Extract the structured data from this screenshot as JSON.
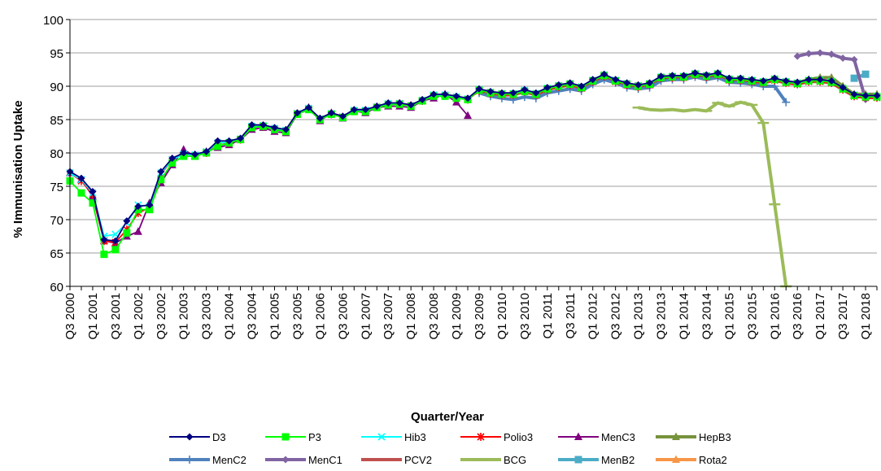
{
  "chart_data": {
    "type": "line",
    "xlabel": "Quarter/Year",
    "ylabel": "% Immunisation Uptake",
    "ylim": [
      60,
      100
    ],
    "yticks": [
      60,
      65,
      70,
      75,
      80,
      85,
      90,
      95,
      100
    ],
    "grid": "horizontal",
    "legend_position": "bottom",
    "x_categories": [
      "Q3 2000",
      "Q4 2000",
      "Q1 2001",
      "Q2 2001",
      "Q3 2001",
      "Q4 2001",
      "Q1 2002",
      "Q2 2002",
      "Q3 2002",
      "Q4 2002",
      "Q1 2003",
      "Q2 2003",
      "Q3 2003",
      "Q4 2003",
      "Q1 2004",
      "Q2 2004",
      "Q3 2004",
      "Q4 2004",
      "Q1 2005",
      "Q2 2005",
      "Q3 2005",
      "Q4 2005",
      "Q1 2006",
      "Q2 2006",
      "Q3 2006",
      "Q4 2006",
      "Q1 2007",
      "Q2 2007",
      "Q3 2007",
      "Q4 2007",
      "Q1 2008",
      "Q2 2008",
      "Q3 2008",
      "Q4 2008",
      "Q1 2009",
      "Q2 2009",
      "Q3 2009",
      "Q4 2009",
      "Q1 2010",
      "Q2 2010",
      "Q3 2010",
      "Q4 2010",
      "Q1 2011",
      "Q2 2011",
      "Q3 2011",
      "Q4 2011",
      "Q1 2012",
      "Q2 2012",
      "Q3 2012",
      "Q4 2012",
      "Q1 2013",
      "Q2 2013",
      "Q3 2013",
      "Q4 2013",
      "Q1 2014",
      "Q2 2014",
      "Q3 2014",
      "Q4 2014",
      "Q1 2015",
      "Q2 2015",
      "Q3 2015",
      "Q4 2015",
      "Q1 2016",
      "Q2 2016",
      "Q3 2016",
      "Q4 2016",
      "Q1 2017",
      "Q2 2017",
      "Q3 2017",
      "Q4 2017",
      "Q1 2018",
      "Q2 2018"
    ],
    "tick_labels": [
      "Q3 2000",
      "Q1 2001",
      "Q3 2001",
      "Q1 2002",
      "Q3 2002",
      "Q1 2003",
      "Q3 2003",
      "Q1 2004",
      "Q3 2004",
      "Q1 2005",
      "Q3 2005",
      "Q1 2006",
      "Q3 2006",
      "Q1 2007",
      "Q3 2007",
      "Q1 2008",
      "Q3 2008",
      "Q1 2009",
      "Q3 2009",
      "Q1 2010",
      "Q3 2010",
      "Q1 2011",
      "Q3 2011",
      "Q1 2012",
      "Q3 2012",
      "Q1 2013",
      "Q3 2013",
      "Q1 2014",
      "Q3 2014",
      "Q1 2015",
      "Q3 2015",
      "Q1 2016",
      "Q3 2016",
      "Q1 2017",
      "Q3 2017",
      "Q1 2018"
    ],
    "series": [
      {
        "name": "D3",
        "color": "#000080",
        "marker": "diamond",
        "start": 0,
        "values": [
          77.2,
          76.2,
          74.2,
          67.0,
          66.8,
          69.8,
          72.0,
          72.2,
          77.2,
          79.2,
          80.0,
          79.8,
          80.2,
          81.8,
          81.8,
          82.2,
          84.2,
          84.2,
          83.8,
          83.5,
          86.0,
          86.8,
          85.2,
          86.0,
          85.5,
          86.5,
          86.5,
          87.0,
          87.5,
          87.5,
          87.2,
          88.0,
          88.8,
          88.8,
          88.5,
          88.2,
          89.6,
          89.2,
          89.0,
          89.0,
          89.5,
          89.0,
          89.8,
          90.2,
          90.5,
          90.0,
          91.0,
          91.8,
          91.0,
          90.5,
          90.2,
          90.5,
          91.5,
          91.6,
          91.6,
          92.0,
          91.7,
          92.0,
          91.2,
          91.2,
          91.0,
          90.8,
          91.2,
          90.8,
          90.6,
          91.0,
          91.0,
          90.8,
          89.8,
          88.8,
          88.6,
          88.6
        ]
      },
      {
        "name": "P3",
        "color": "#00ff00",
        "marker": "square",
        "start": 0,
        "values": [
          75.8,
          74.0,
          72.5,
          64.8,
          65.5,
          68.0,
          71.5,
          71.5,
          76.0,
          78.5,
          79.5,
          79.5,
          80.0,
          81.0,
          81.5,
          82.0,
          83.8,
          84.0,
          83.5,
          83.2,
          85.8,
          86.5,
          85.0,
          85.8,
          85.3,
          86.2,
          86.2,
          86.8,
          87.2,
          87.3,
          87.0,
          87.8,
          88.5,
          88.5,
          88.2,
          88.0,
          89.4,
          89.0,
          88.8,
          88.8,
          89.2,
          88.8,
          89.6,
          90.0,
          90.3,
          89.8,
          90.8,
          91.6,
          90.8,
          90.3,
          90.0,
          90.3,
          91.3,
          91.4,
          91.4,
          91.8,
          91.5,
          91.8,
          91.0,
          91.0,
          90.8,
          90.6,
          91.0,
          90.6,
          90.4,
          90.8,
          90.8,
          90.6,
          89.6,
          88.6,
          88.4,
          88.4
        ]
      },
      {
        "name": "Hib3",
        "color": "#00ffff",
        "marker": "x",
        "start": 0,
        "values": [
          77.0,
          76.0,
          74.0,
          67.5,
          67.8,
          69.5,
          72.2,
          72.0,
          77.0,
          79.0,
          79.8,
          79.7,
          80.2,
          81.5,
          81.6,
          82.1,
          84.0,
          84.1,
          83.7,
          83.4,
          85.9,
          86.7,
          85.1,
          85.9,
          85.4,
          86.4,
          86.4,
          86.9,
          87.4,
          87.4,
          87.1,
          87.9,
          88.7,
          88.7,
          88.4,
          88.1,
          89.5,
          89.1,
          88.9,
          88.9,
          89.4,
          88.9,
          89.7,
          90.1,
          90.4,
          89.9,
          90.9,
          91.7,
          90.9,
          90.4,
          90.1,
          90.4,
          91.4,
          91.5,
          91.5,
          91.9,
          91.6,
          91.9,
          91.1,
          91.1,
          90.9,
          90.7,
          91.1,
          90.7,
          90.5,
          90.9,
          90.9,
          90.7,
          89.7,
          88.7,
          88.5,
          88.5
        ]
      },
      {
        "name": "Polio3",
        "color": "#ff0000",
        "marker": "star",
        "start": 0,
        "values": [
          77.0,
          75.8,
          73.8,
          66.8,
          66.6,
          68.5,
          71.0,
          71.8,
          76.8,
          79.0,
          79.8,
          79.6,
          80.0,
          81.5,
          81.5,
          82.0,
          84.0,
          84.0,
          83.6,
          83.3,
          85.9,
          86.6,
          85.1,
          85.8,
          85.4,
          86.3,
          86.3,
          86.9,
          87.3,
          87.4,
          87.1,
          87.8,
          88.6,
          88.6,
          88.3,
          88.0,
          89.3,
          88.9,
          88.7,
          88.7,
          89.2,
          88.7,
          89.5,
          89.9,
          90.2,
          89.7,
          90.7,
          91.5,
          90.7,
          90.2,
          89.9,
          90.2,
          91.2,
          91.3,
          91.3,
          91.7,
          91.4,
          91.7,
          90.9,
          90.9,
          90.7,
          90.5,
          90.9,
          90.5,
          90.3,
          90.7,
          90.7,
          90.5,
          89.5,
          88.5,
          88.3,
          88.3
        ]
      },
      {
        "name": "MenC3",
        "color": "#800080",
        "marker": "triangle",
        "start": 0,
        "values": [
          77.0,
          76.0,
          73.5,
          66.8,
          66.5,
          67.5,
          68.2,
          72.5,
          75.5,
          78.2,
          80.5,
          79.5,
          80.2,
          80.8,
          81.2,
          82.0,
          83.5,
          83.8,
          83.2,
          83.0,
          85.8,
          86.8,
          84.8,
          86.0,
          85.2,
          86.3,
          86.0,
          86.8,
          87.0,
          87.0,
          86.8,
          87.8,
          88.2,
          88.8,
          87.6,
          85.6
        ]
      },
      {
        "name": "HepB3",
        "color": "#77933c",
        "marker": "triangle",
        "start": 64,
        "values": [
          90.5,
          91.0,
          91.3,
          91.3,
          90.0,
          88.8,
          88.8,
          88.8
        ]
      },
      {
        "name": "MenC2",
        "color": "#4f81bd",
        "marker": "plus",
        "start": 36,
        "values": [
          89.0,
          88.5,
          88.2,
          88.0,
          88.4,
          88.2,
          89.0,
          89.3,
          89.6,
          89.3,
          90.3,
          91.0,
          90.5,
          89.8,
          89.6,
          89.8,
          90.8,
          91.0,
          91.0,
          91.4,
          91.0,
          91.3,
          90.6,
          90.5,
          90.3,
          90.0,
          90.0,
          87.6
        ]
      },
      {
        "name": "MenC1",
        "color": "#8064a2",
        "marker": "diamond",
        "start": 64,
        "values": [
          94.5,
          94.9,
          95.0,
          94.8,
          94.2,
          94.0,
          88.0
        ]
      },
      {
        "name": "PCV2",
        "color": "#c0504d",
        "marker": "none",
        "start": 36,
        "values": [
          89.3,
          88.9,
          88.7,
          88.7,
          89.2,
          88.7,
          89.5,
          89.9,
          90.2,
          89.7,
          90.7,
          91.5,
          90.7,
          90.2,
          89.9,
          90.2,
          91.2,
          91.3,
          91.3,
          91.7,
          91.4,
          91.7,
          90.9,
          90.9,
          90.7,
          90.5,
          90.9,
          90.5,
          90.3,
          90.7,
          90.7,
          90.5,
          89.5,
          88.5,
          88.3,
          88.3
        ]
      },
      {
        "name": "BCG",
        "color": "#9bbb59",
        "marker": "dash",
        "start": 50,
        "values": [
          86.8,
          86.5,
          86.4,
          86.5,
          86.3,
          86.5,
          86.3,
          87.5,
          87.0,
          87.6,
          87.2,
          84.5,
          72.3,
          60.0
        ]
      },
      {
        "name": "MenB2",
        "color": "#4bacc6",
        "marker": "square",
        "start": 69,
        "values": [
          91.2,
          91.8
        ]
      },
      {
        "name": "Rota2",
        "color": "#f79646",
        "marker": "triangle",
        "start": 69,
        "values": [
          88.6,
          88.6
        ]
      }
    ]
  }
}
